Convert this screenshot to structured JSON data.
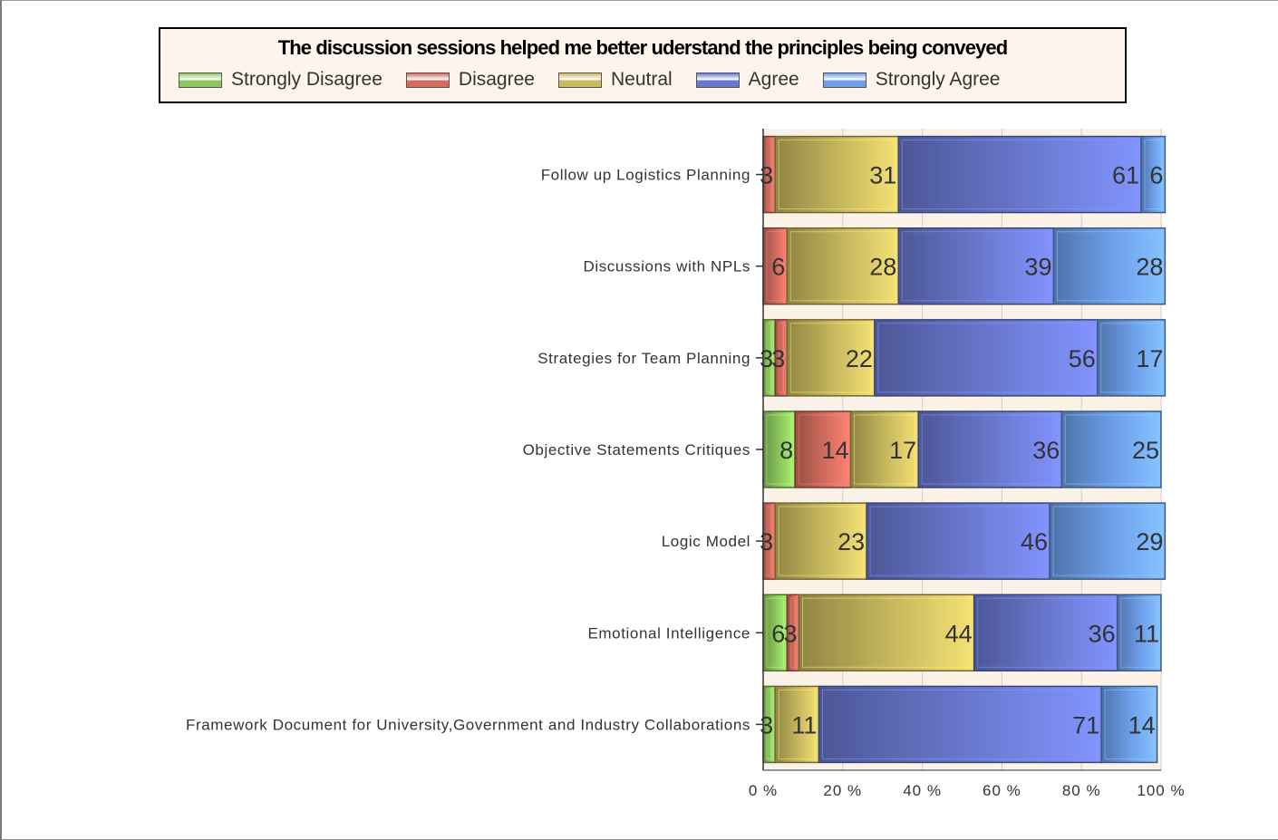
{
  "chart_data": {
    "type": "bar",
    "orientation": "horizontal",
    "stacked": "percent",
    "title": "The discussion sessions helped me better uderstand the principles being conveyed",
    "categories": [
      "Follow up Logistics Planning",
      "Discussions with NPLs",
      "Strategies for Team Planning",
      "Objective Statements Critiques",
      "Logic Model",
      "Emotional Intelligence",
      "Framework Document for University,Government and Industry Collaborations"
    ],
    "series": [
      {
        "name": "Strongly Disagree",
        "color": "#8dc95e",
        "values": [
          0,
          0,
          3,
          8,
          0,
          6,
          3
        ]
      },
      {
        "name": "Disagree",
        "color": "#d26c5f",
        "values": [
          3,
          6,
          3,
          14,
          3,
          3,
          0
        ]
      },
      {
        "name": "Neutral",
        "color": "#c9b95f",
        "values": [
          31,
          28,
          22,
          17,
          23,
          44,
          11
        ]
      },
      {
        "name": "Agree",
        "color": "#6a79d0",
        "values": [
          61,
          39,
          56,
          36,
          46,
          36,
          71
        ]
      },
      {
        "name": "Strongly Agree",
        "color": "#6ea0ec",
        "values": [
          6,
          28,
          17,
          25,
          29,
          11,
          14
        ]
      }
    ],
    "x_tick_labels": [
      "0 %",
      "20 %",
      "40 %",
      "60 %",
      "80 %",
      "100 %"
    ],
    "xlim": [
      0,
      100
    ],
    "grid": true,
    "legend_position": "top"
  }
}
